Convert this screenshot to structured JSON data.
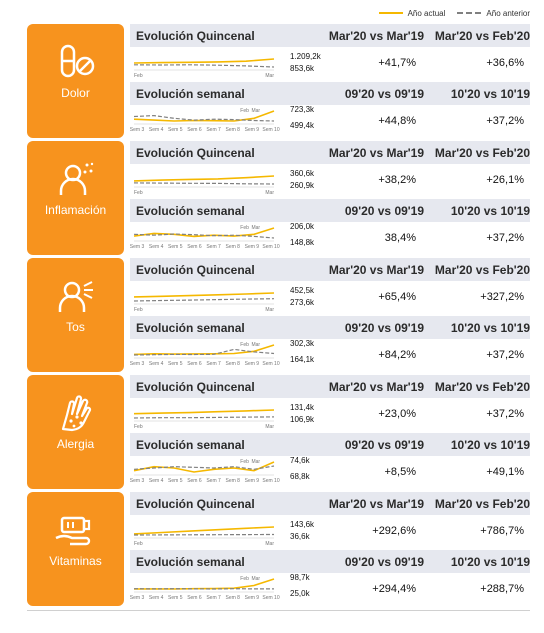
{
  "legend": {
    "current": "Año actual",
    "previous": "Año anterior"
  },
  "colors": {
    "accent": "#f7931e",
    "current": "#f5b800",
    "previous": "#808080",
    "header": "#e6e8ef"
  },
  "axis_labels": {
    "biweekly": {
      "start": "Feb",
      "end": "Mar"
    },
    "weekly": [
      "Sem 3",
      "Sem 4",
      "Sem 5",
      "Sem 6",
      "Sem 7",
      "Sem 8",
      "Sem 9",
      "Sem 10"
    ],
    "weekly_markers": [
      "Feb",
      "Mar"
    ]
  },
  "sections": [
    {
      "name": "Dolor",
      "icon": "pills-icon",
      "quincenal": {
        "title": "Evolución Quincenal",
        "col1": "Mar'20 vs Mar'19",
        "col2": "Mar'20 vs Feb'20",
        "value_current": "1.209,2k",
        "value_previous": "853,6k",
        "pct1": "+41,7%",
        "pct2": "+36,6%"
      },
      "semanal": {
        "title": "Evolución semanal",
        "col1": "09'20 vs 09'19",
        "col2": "10'20 vs 10'19",
        "value_current": "723,3k",
        "value_previous": "499,4k",
        "pct1": "+44,8%",
        "pct2": "+37,2%"
      }
    },
    {
      "name": "Inflamación",
      "icon": "inflamed-person-icon",
      "quincenal": {
        "title": "Evolución Quincenal",
        "col1": "Mar'20 vs Mar'19",
        "col2": "Mar'20 vs Feb'20",
        "value_current": "360,6k",
        "value_previous": "260,9k",
        "pct1": "+38,2%",
        "pct2": "+26,1%"
      },
      "semanal": {
        "title": "Evolución semanal",
        "col1": "09'20 vs 09'19",
        "col2": "10'20 vs 10'19",
        "value_current": "206,0k",
        "value_previous": "148,8k",
        "pct1": "38,4%",
        "pct2": "+37,2%"
      }
    },
    {
      "name": "Tos",
      "icon": "coughing-person-icon",
      "quincenal": {
        "title": "Evolución Quincenal",
        "col1": "Mar'20 vs Mar'19",
        "col2": "Mar'20 vs Feb'20",
        "value_current": "452,5k",
        "value_previous": "273,6k",
        "pct1": "+65,4%",
        "pct2": "+327,2%"
      },
      "semanal": {
        "title": "Evolución semanal",
        "col1": "09'20 vs 09'19",
        "col2": "10'20 vs 10'19",
        "value_current": "302,3k",
        "value_previous": "164,1k",
        "pct1": "+84,2%",
        "pct2": "+37,2%"
      }
    },
    {
      "name": "Alergia",
      "icon": "allergy-hand-icon",
      "quincenal": {
        "title": "Evolución Quincenal",
        "col1": "Mar'20 vs Mar'19",
        "col2": "Mar'20 vs Feb'20",
        "value_current": "131,4k",
        "value_previous": "106,9k",
        "pct1": "+23,0%",
        "pct2": "+37,2%"
      },
      "semanal": {
        "title": "Evolución semanal",
        "col1": "09'20 vs 09'19",
        "col2": "10'20 vs 10'19",
        "value_current": "74,6k",
        "value_previous": "68,8k",
        "pct1": "+8,5%",
        "pct2": "+49,1%"
      }
    },
    {
      "name": "Vitaminas",
      "icon": "vitamin-bottle-icon",
      "quincenal": {
        "title": "Evolución Quincenal",
        "col1": "Mar'20 vs Mar'19",
        "col2": "Mar'20 vs Feb'20",
        "value_current": "143,6k",
        "value_previous": "36,6k",
        "pct1": "+292,6%",
        "pct2": "+786,7%"
      },
      "semanal": {
        "title": "Evolución semanal",
        "col1": "09'20 vs 09'19",
        "col2": "10'20 vs 10'19",
        "value_current": "98,7k",
        "value_previous": "25,0k",
        "pct1": "+294,4%",
        "pct2": "+288,7%"
      }
    }
  ],
  "chart_data": [
    {
      "type": "line",
      "title": "Dolor - Evolución Quincenal",
      "series": [
        {
          "name": "Año actual",
          "values": [
            1.03,
            1.05,
            1.06,
            1.08,
            1.11,
            1.21
          ]
        },
        {
          "name": "Año anterior",
          "values": [
            0.95,
            0.94,
            0.95,
            0.93,
            0.9,
            0.85
          ]
        }
      ]
    },
    {
      "type": "line",
      "title": "Dolor - Evolución semanal",
      "categories": [
        "Sem 3",
        "Sem 4",
        "Sem 5",
        "Sem 6",
        "Sem 7",
        "Sem 8",
        "Sem 9",
        "Sem 10"
      ],
      "series": [
        {
          "name": "Año actual",
          "values": [
            540,
            520,
            500,
            510,
            505,
            500,
            560,
            723
          ]
        },
        {
          "name": "Año anterior",
          "values": [
            600,
            620,
            560,
            520,
            540,
            530,
            510,
            499
          ]
        }
      ]
    },
    {
      "type": "line",
      "title": "Inflamación - Evolución Quincenal",
      "series": [
        {
          "name": "Año actual",
          "values": [
            300,
            310,
            318,
            325,
            340,
            361
          ]
        },
        {
          "name": "Año anterior",
          "values": [
            275,
            272,
            270,
            268,
            264,
            261
          ]
        }
      ]
    },
    {
      "type": "line",
      "title": "Inflamación - Evolución semanal",
      "categories": [
        "Sem 3",
        "Sem 4",
        "Sem 5",
        "Sem 6",
        "Sem 7",
        "Sem 8",
        "Sem 9",
        "Sem 10"
      ],
      "series": [
        {
          "name": "Año actual",
          "values": [
            160,
            175,
            170,
            158,
            165,
            160,
            170,
            206
          ]
        },
        {
          "name": "Año anterior",
          "values": [
            170,
            165,
            172,
            168,
            162,
            165,
            158,
            149
          ]
        }
      ]
    },
    {
      "type": "line",
      "title": "Tos - Evolución Quincenal",
      "series": [
        {
          "name": "Año actual",
          "values": [
            330,
            350,
            370,
            395,
            420,
            453
          ]
        },
        {
          "name": "Año anterior",
          "values": [
            200,
            215,
            230,
            245,
            260,
            274
          ]
        }
      ]
    },
    {
      "type": "line",
      "title": "Tos - Evolución semanal",
      "categories": [
        "Sem 3",
        "Sem 4",
        "Sem 5",
        "Sem 6",
        "Sem 7",
        "Sem 8",
        "Sem 9",
        "Sem 10"
      ],
      "series": [
        {
          "name": "Año actual",
          "values": [
            150,
            160,
            155,
            158,
            160,
            165,
            200,
            302
          ]
        },
        {
          "name": "Año anterior",
          "values": [
            140,
            145,
            150,
            148,
            152,
            230,
            190,
            164
          ]
        }
      ]
    },
    {
      "type": "line",
      "title": "Alergia - Evolución Quincenal",
      "series": [
        {
          "name": "Año actual",
          "values": [
            118,
            120,
            122,
            125,
            128,
            131
          ]
        },
        {
          "name": "Año anterior",
          "values": [
            103,
            104,
            104,
            105,
            106,
            107
          ]
        }
      ]
    },
    {
      "type": "line",
      "title": "Alergia - Evolución semanal",
      "categories": [
        "Sem 3",
        "Sem 4",
        "Sem 5",
        "Sem 6",
        "Sem 7",
        "Sem 8",
        "Sem 9",
        "Sem 10"
      ],
      "series": [
        {
          "name": "Año actual",
          "values": [
            62,
            68,
            66,
            60,
            64,
            66,
            62,
            75
          ]
        },
        {
          "name": "Año anterior",
          "values": [
            64,
            66,
            68,
            67,
            66,
            68,
            64,
            69
          ]
        }
      ]
    },
    {
      "type": "line",
      "title": "Vitaminas - Evolución Quincenal",
      "series": [
        {
          "name": "Año actual",
          "values": [
            45,
            65,
            85,
            105,
            125,
            144
          ]
        },
        {
          "name": "Año anterior",
          "values": [
            30,
            31,
            33,
            34,
            35,
            37
          ]
        }
      ]
    },
    {
      "type": "line",
      "title": "Vitaminas - Evolución semanal",
      "categories": [
        "Sem 3",
        "Sem 4",
        "Sem 5",
        "Sem 6",
        "Sem 7",
        "Sem 8",
        "Sem 9",
        "Sem 10"
      ],
      "series": [
        {
          "name": "Año actual",
          "values": [
            24,
            25,
            24,
            26,
            27,
            30,
            50,
            99
          ]
        },
        {
          "name": "Año anterior",
          "values": [
            26,
            25,
            26,
            25,
            24,
            26,
            25,
            25
          ]
        }
      ]
    }
  ]
}
